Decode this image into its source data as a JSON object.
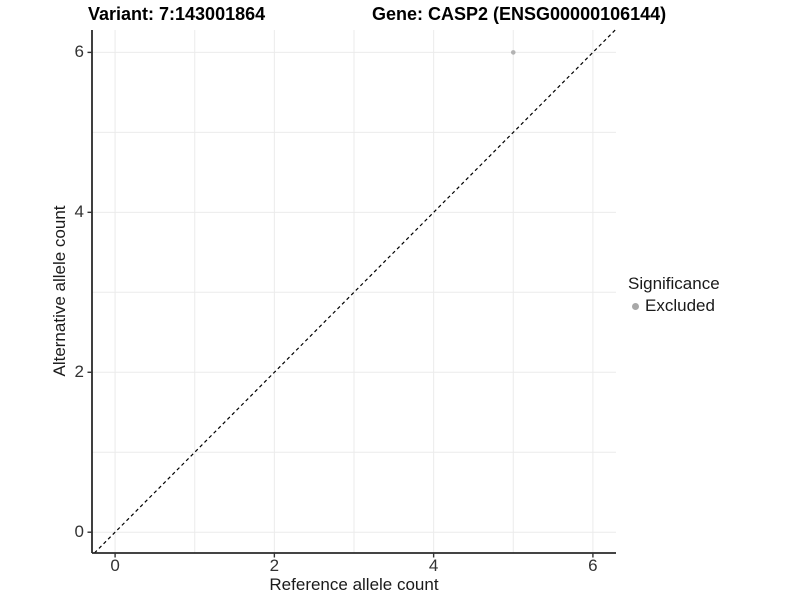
{
  "chart_data": {
    "type": "scatter",
    "title_left": "Variant: 7:143001864",
    "title_right": "Gene: CASP2 (ENSG00000106144)",
    "xlabel": "Reference allele count",
    "ylabel": "Alternative allele count",
    "x_ticks": [
      0,
      2,
      4,
      6
    ],
    "y_ticks": [
      0,
      2,
      4,
      6
    ],
    "gridlines_x": [
      0,
      1,
      2,
      3,
      4,
      5,
      6
    ],
    "gridlines_y": [
      0,
      1,
      2,
      3,
      4,
      5,
      6
    ],
    "x_range": [
      -0.29,
      6.29
    ],
    "y_range": [
      -0.26,
      6.28
    ],
    "grid": true,
    "points": [
      {
        "x": 5,
        "y": 6,
        "significance": "Excluded"
      }
    ],
    "identity_line": {
      "slope": 1,
      "intercept": 0,
      "linetype": "dashed"
    },
    "legend": {
      "title": "Significance",
      "position": "right",
      "entries": [
        {
          "label": "Excluded",
          "color": "#a8a8a8"
        }
      ]
    },
    "colors": {
      "point": "#b3b3b3",
      "gridline": "#ebebeb",
      "axis_line": "#2a2a2a",
      "tick_mark": "#333333",
      "dashed_line": "#000000",
      "text": "#1a1a1a"
    }
  }
}
